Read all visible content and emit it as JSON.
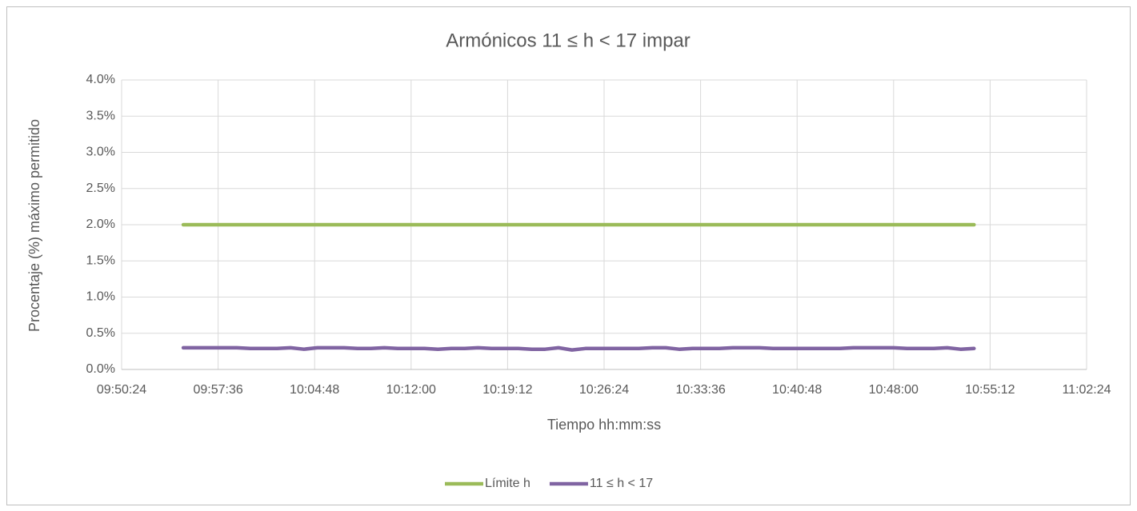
{
  "chart_data": {
    "type": "line",
    "title": "Armónicos 11 ≤ h < 17 impar",
    "x_label": "Tiempo hh:mm:ss",
    "y_label": "Procentaje (%) máximo permitido",
    "x": [
      "09:55:00",
      "09:56:00",
      "09:57:00",
      "09:58:00",
      "09:59:00",
      "10:00:00",
      "10:01:00",
      "10:02:00",
      "10:03:00",
      "10:04:00",
      "10:05:00",
      "10:06:00",
      "10:07:00",
      "10:08:00",
      "10:09:00",
      "10:10:00",
      "10:11:00",
      "10:12:00",
      "10:13:00",
      "10:14:00",
      "10:15:00",
      "10:16:00",
      "10:17:00",
      "10:18:00",
      "10:19:00",
      "10:20:00",
      "10:21:00",
      "10:22:00",
      "10:23:00",
      "10:24:00",
      "10:25:00",
      "10:26:00",
      "10:27:00",
      "10:28:00",
      "10:29:00",
      "10:30:00",
      "10:31:00",
      "10:32:00",
      "10:33:00",
      "10:34:00",
      "10:35:00",
      "10:36:00",
      "10:37:00",
      "10:38:00",
      "10:39:00",
      "10:40:00",
      "10:41:00",
      "10:42:00",
      "10:43:00",
      "10:44:00",
      "10:45:00",
      "10:46:00",
      "10:47:00",
      "10:48:00",
      "10:49:00",
      "10:50:00",
      "10:51:00",
      "10:52:00",
      "10:53:00",
      "10:54:00"
    ],
    "series": [
      {
        "name": "Límite h",
        "color": "#9bbb59",
        "values": [
          2,
          2,
          2,
          2,
          2,
          2,
          2,
          2,
          2,
          2,
          2,
          2,
          2,
          2,
          2,
          2,
          2,
          2,
          2,
          2,
          2,
          2,
          2,
          2,
          2,
          2,
          2,
          2,
          2,
          2,
          2,
          2,
          2,
          2,
          2,
          2,
          2,
          2,
          2,
          2,
          2,
          2,
          2,
          2,
          2,
          2,
          2,
          2,
          2,
          2,
          2,
          2,
          2,
          2,
          2,
          2,
          2,
          2,
          2,
          2
        ]
      },
      {
        "name": "11 ≤ h < 17",
        "color": "#8064a2",
        "values": [
          0.3,
          0.3,
          0.3,
          0.3,
          0.3,
          0.29,
          0.29,
          0.29,
          0.3,
          0.28,
          0.3,
          0.3,
          0.3,
          0.29,
          0.29,
          0.3,
          0.29,
          0.29,
          0.29,
          0.28,
          0.29,
          0.29,
          0.3,
          0.29,
          0.29,
          0.29,
          0.28,
          0.28,
          0.3,
          0.27,
          0.29,
          0.29,
          0.29,
          0.29,
          0.29,
          0.3,
          0.3,
          0.28,
          0.29,
          0.29,
          0.29,
          0.3,
          0.3,
          0.3,
          0.29,
          0.29,
          0.29,
          0.29,
          0.29,
          0.29,
          0.3,
          0.3,
          0.3,
          0.3,
          0.29,
          0.29,
          0.29,
          0.3,
          0.28,
          0.29
        ]
      }
    ],
    "xlim": [
      "09:50:24",
      "11:02:24"
    ],
    "xticks": [
      "09:50:24",
      "09:57:36",
      "10:04:48",
      "10:12:00",
      "10:19:12",
      "10:26:24",
      "10:33:36",
      "10:40:48",
      "10:48:00",
      "10:55:12",
      "11:02:24"
    ],
    "ylim": [
      0,
      4
    ],
    "yticks": [
      {
        "value": 0,
        "label": "0.0%"
      },
      {
        "value": 0.5,
        "label": "0.5%"
      },
      {
        "value": 1,
        "label": "1.0%"
      },
      {
        "value": 1.5,
        "label": "1.5%"
      },
      {
        "value": 2,
        "label": "2.0%"
      },
      {
        "value": 2.5,
        "label": "2.5%"
      },
      {
        "value": 3,
        "label": "3.0%"
      },
      {
        "value": 3.5,
        "label": "3.5%"
      },
      {
        "value": 4,
        "label": "4.0%"
      }
    ],
    "grid": true,
    "legend": "bottom"
  }
}
